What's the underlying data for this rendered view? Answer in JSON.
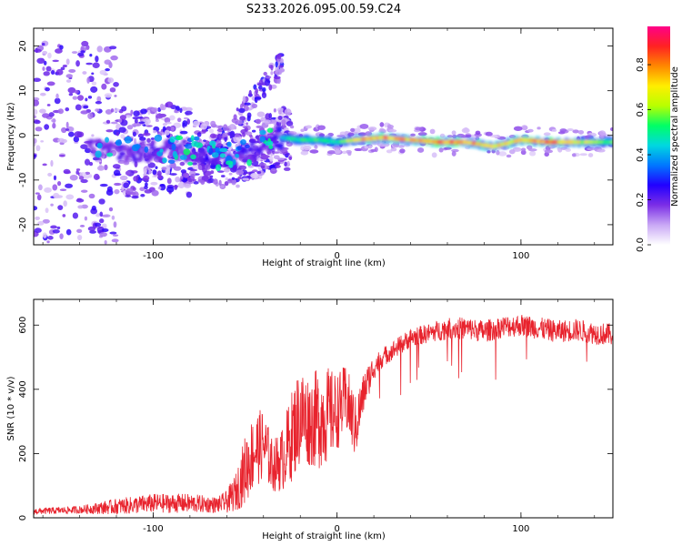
{
  "title": "S233.2026.095.00.59.C24",
  "chart_data": [
    {
      "type": "heatmap",
      "name": "spectrogram",
      "xlabel": "Height of straight line (km)",
      "ylabel": "Frequency (Hz)",
      "xlim": [
        -165,
        150
      ],
      "ylim": [
        -24.5,
        24
      ],
      "x_ticks": [
        -100,
        0,
        100
      ],
      "x_tick_labels": [
        "-100",
        "0",
        "100"
      ],
      "y_ticks": [
        -20,
        -10,
        0,
        10,
        20
      ],
      "y_tick_labels": [
        "-20",
        "-10",
        "0",
        "10",
        "20"
      ],
      "colorbar": {
        "label": "Normalized spectral amplitude",
        "range": [
          0,
          0.97
        ],
        "ticks": [
          0.0,
          0.2,
          0.4,
          0.6,
          0.8
        ],
        "tick_labels": [
          "0.0",
          "0.2",
          "0.4",
          "0.6",
          "0.8"
        ],
        "colormap": [
          "#ffffff",
          "#c9a8f5",
          "#7b2ee6",
          "#2200ff",
          "#0077ff",
          "#00d8e0",
          "#00ff66",
          "#b8ff00",
          "#ffee00",
          "#ff8800",
          "#ff2222",
          "#ff0088"
        ]
      },
      "ridge": {
        "description": "dominant frequency ridge",
        "x": [
          -130,
          -110,
          -90,
          -70,
          -55,
          -40,
          -30,
          -20,
          -10,
          0,
          10,
          25,
          40,
          55,
          70,
          85,
          100,
          115,
          130,
          148
        ],
        "freq": [
          -3,
          -4,
          -3,
          -4,
          -5,
          -2,
          -0.5,
          -1,
          -1,
          -1.5,
          -1,
          -0.5,
          -1,
          -1.5,
          -1.5,
          -2.5,
          -1,
          -1.5,
          -1.5,
          -1.5
        ],
        "amplitude": [
          0.35,
          0.4,
          0.38,
          0.45,
          0.45,
          0.4,
          0.5,
          0.55,
          0.6,
          0.55,
          0.75,
          0.85,
          0.8,
          0.9,
          0.85,
          0.75,
          0.8,
          0.9,
          0.75,
          0.6
        ]
      }
    },
    {
      "type": "line",
      "name": "snr",
      "xlabel": "Height of straight line (km)",
      "ylabel": "SNR (10 * v/v)",
      "xlim": [
        -165,
        150
      ],
      "ylim": [
        0,
        680
      ],
      "x_ticks": [
        -100,
        0,
        100
      ],
      "x_tick_labels": [
        "-100",
        "0",
        "100"
      ],
      "y_ticks": [
        0,
        200,
        400,
        600
      ],
      "y_tick_labels": [
        "0",
        "200",
        "400",
        "600"
      ],
      "color": "#e8232d",
      "envelope": {
        "x": [
          -165,
          -140,
          -120,
          -100,
          -80,
          -65,
          -60,
          -55,
          -50,
          -45,
          -40,
          -35,
          -30,
          -25,
          -20,
          -15,
          -10,
          -5,
          0,
          5,
          10,
          15,
          20,
          25,
          30,
          35,
          40,
          50,
          60,
          70,
          80,
          90,
          100,
          110,
          120,
          130,
          140,
          150
        ],
        "snr": [
          20,
          25,
          35,
          45,
          45,
          40,
          50,
          80,
          150,
          210,
          230,
          160,
          180,
          250,
          320,
          300,
          310,
          320,
          330,
          370,
          280,
          400,
          470,
          500,
          520,
          540,
          560,
          575,
          590,
          590,
          580,
          595,
          600,
          590,
          580,
          585,
          575,
          570
        ],
        "noise": [
          10,
          12,
          25,
          30,
          30,
          25,
          35,
          60,
          110,
          120,
          110,
          80,
          100,
          140,
          160,
          140,
          160,
          150,
          120,
          110,
          100,
          60,
          40,
          30,
          30,
          30,
          30,
          30,
          35,
          35,
          35,
          35,
          35,
          35,
          35,
          35,
          35,
          35
        ]
      }
    }
  ]
}
